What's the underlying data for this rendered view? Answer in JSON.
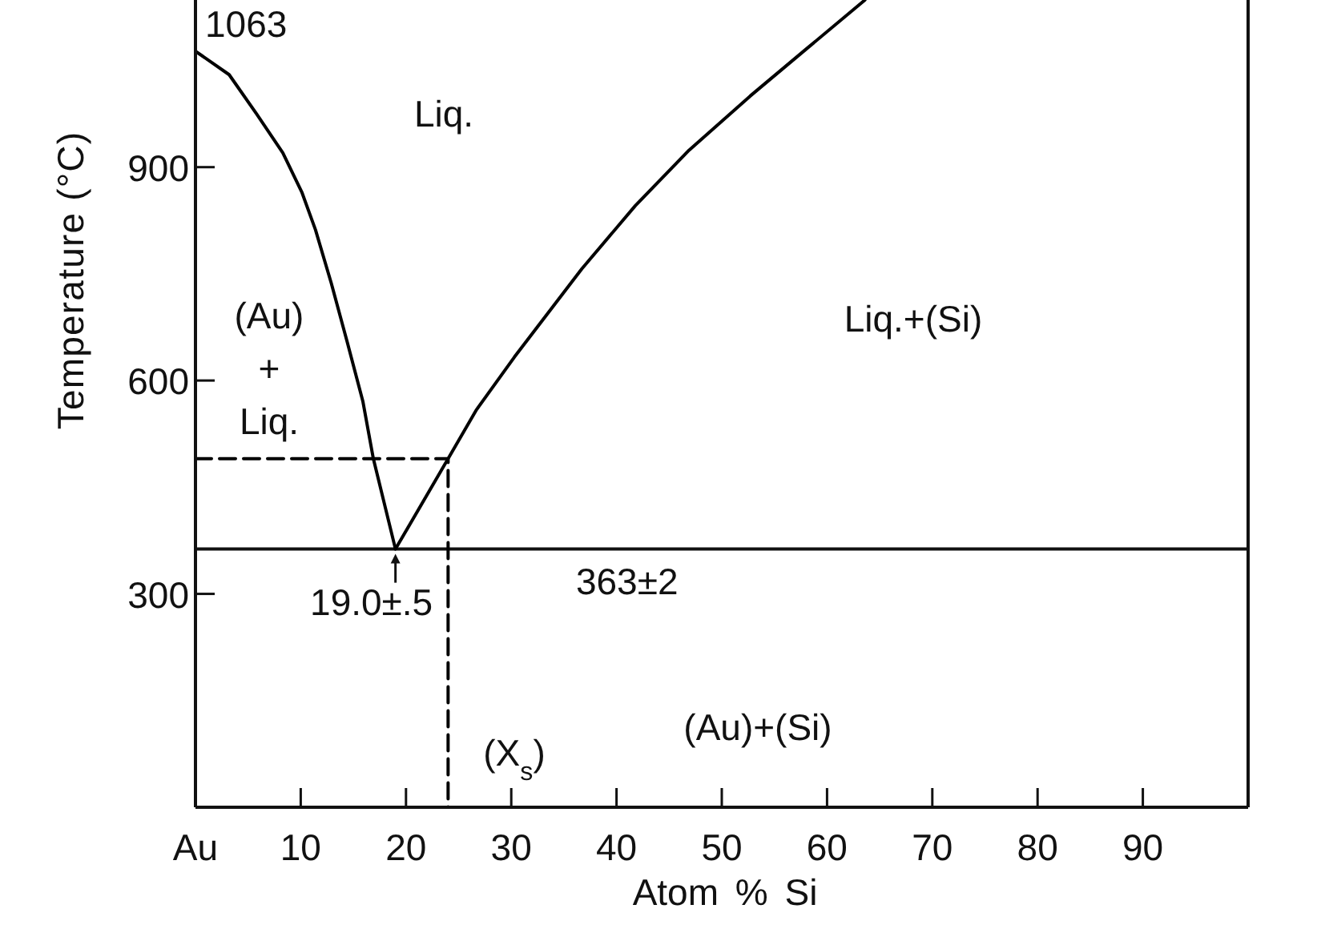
{
  "chart_data": {
    "type": "line",
    "xlabel": "Atom % Si",
    "ylabel": "Temperature (°C)",
    "xlim": [
      0,
      100
    ],
    "xticks": [
      {
        "value": 0,
        "label": "Au"
      },
      10,
      20,
      30,
      40,
      50,
      60,
      70,
      80,
      90
    ],
    "ylim": [
      0,
      1135
    ],
    "yticks": [
      300,
      600,
      900
    ],
    "series": [
      {
        "color": "#000000",
        "x": [
          0,
          3.2,
          5.8,
          8.3,
          10.1,
          11.4,
          12.9,
          14.4,
          15.9,
          16.9,
          19,
          24,
          26.7,
          30.3,
          36.7,
          41.8,
          46.9,
          52.7,
          58.1,
          63.6
        ],
        "values": [
          1063,
          1030,
          975,
          920,
          865,
          812,
          737,
          655,
          571,
          490,
          363,
          490,
          559,
          633,
          757,
          846,
          924,
          1000,
          1067,
          1135
        ]
      },
      {
        "color": "#000000",
        "line_style": "dashed",
        "x": [
          0,
          24,
          24
        ],
        "values": [
          490,
          490,
          0
        ]
      }
    ],
    "ref_lines": [
      {
        "axis": "y",
        "value": 363,
        "label": "363±2"
      }
    ],
    "annotations": [
      {
        "text": "1063",
        "x": 0,
        "y": 1063
      },
      "Liq.",
      "(Au)\n+\nLiq.",
      "Liq.+(Si)",
      {
        "text": "19.0±.5",
        "x": 19,
        "y": 363
      },
      "(X$_{s}$)",
      "(Au)+(Si)"
    ]
  }
}
